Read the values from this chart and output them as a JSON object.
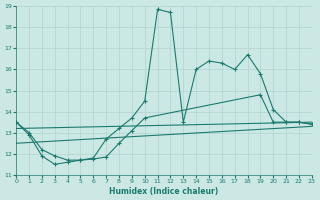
{
  "xlabel": "Humidex (Indice chaleur)",
  "x_values": [
    0,
    1,
    2,
    3,
    4,
    5,
    6,
    7,
    8,
    9,
    10,
    11,
    12,
    13,
    14,
    15,
    16,
    17,
    18,
    19,
    20,
    21,
    22,
    23
  ],
  "line1": [
    13.5,
    12.9,
    11.9,
    11.5,
    11.6,
    11.7,
    11.8,
    12.7,
    13.2,
    13.7,
    14.5,
    18.85,
    18.7,
    13.5,
    16.0,
    16.4,
    16.3,
    16.0,
    16.7,
    15.8,
    14.1,
    13.5,
    13.5,
    13.4
  ],
  "line2_x": [
    0,
    1,
    2,
    3,
    4,
    5,
    6,
    7,
    8,
    9,
    10,
    19,
    20,
    21,
    22,
    23
  ],
  "line2_y": [
    13.5,
    13.0,
    12.2,
    11.9,
    11.7,
    11.7,
    11.75,
    11.85,
    12.5,
    13.1,
    13.7,
    14.8,
    13.5,
    13.5,
    13.5,
    13.4
  ],
  "line3_x": [
    0,
    23
  ],
  "line3_y": [
    13.2,
    13.5
  ],
  "line4_x": [
    0,
    23
  ],
  "line4_y": [
    12.5,
    13.3
  ],
  "ylim": [
    11,
    19
  ],
  "xlim": [
    0,
    23
  ],
  "yticks": [
    11,
    12,
    13,
    14,
    15,
    16,
    17,
    18,
    19
  ],
  "xticks": [
    0,
    1,
    2,
    3,
    4,
    5,
    6,
    7,
    8,
    9,
    10,
    11,
    12,
    13,
    14,
    15,
    16,
    17,
    18,
    19,
    20,
    21,
    22,
    23
  ],
  "bg_color": "#cce8e5",
  "grid_color": "#b0d4d0",
  "line_color": "#1a7a6e"
}
